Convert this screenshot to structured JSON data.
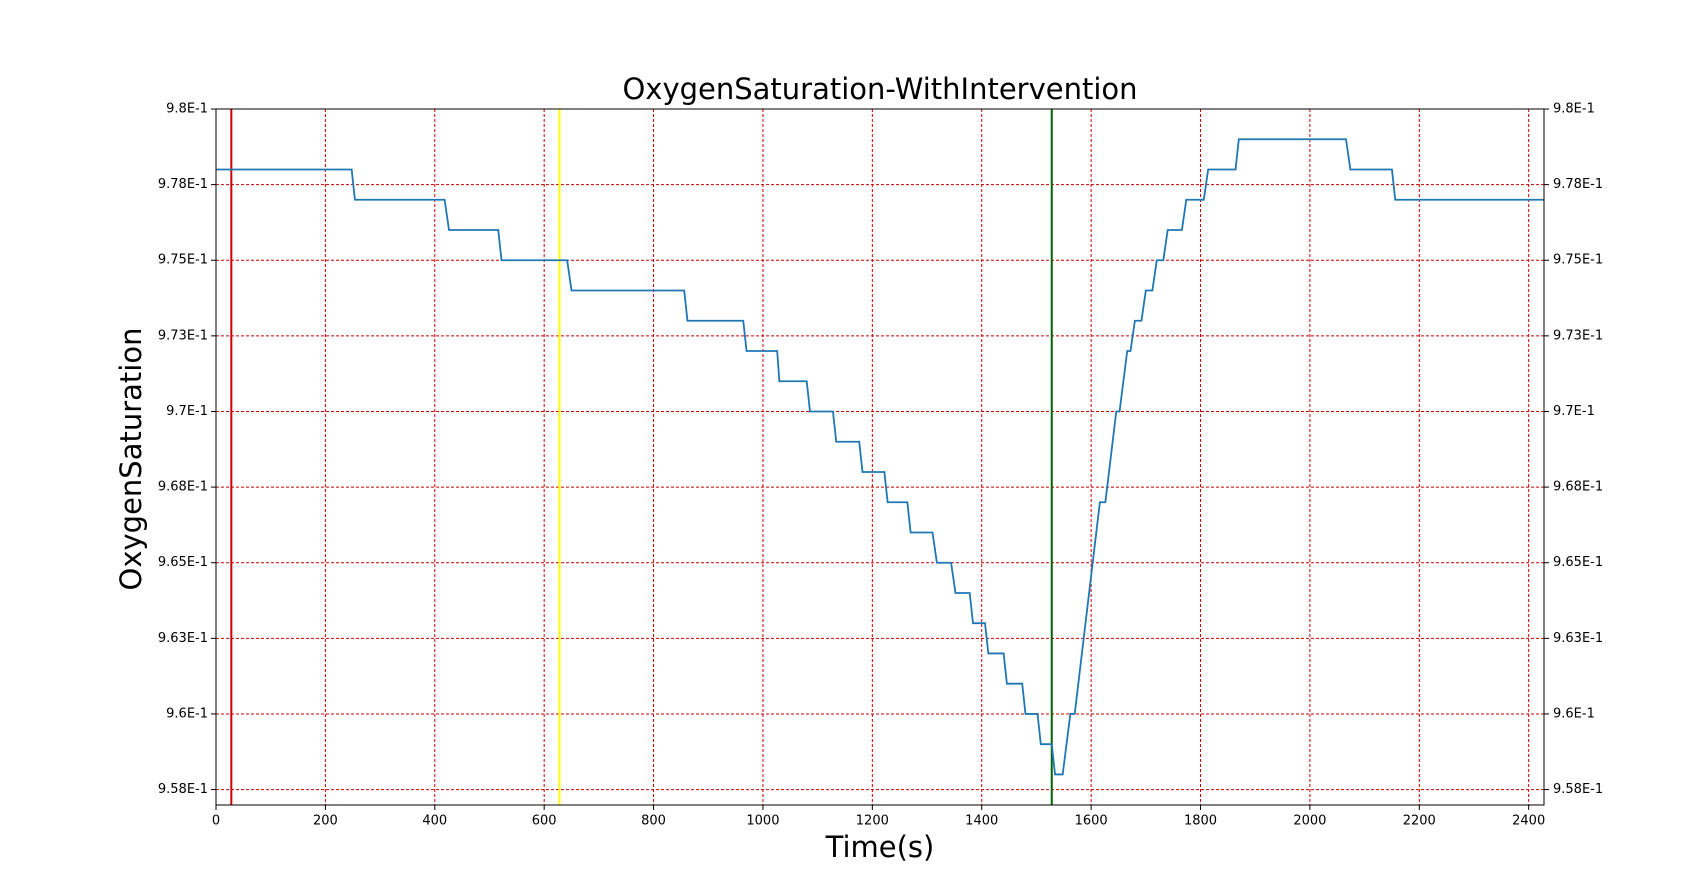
{
  "chart_data": {
    "type": "line",
    "title": "OxygenSaturation-WithIntervention",
    "x_label": "Time(s)",
    "y_label": "OxygenSaturation",
    "xlim": [
      0,
      2428
    ],
    "xticks": [
      0,
      200,
      400,
      600,
      800,
      1000,
      1200,
      1400,
      1600,
      1800,
      2000,
      2200,
      2400
    ],
    "ylim": [
      0.95699,
      0.98
    ],
    "yticks": [
      {
        "value": 0.9575,
        "label": "9.58E-1"
      },
      {
        "value": 0.96,
        "label": "9.6E-1"
      },
      {
        "value": 0.9625,
        "label": "9.63E-1"
      },
      {
        "value": 0.965,
        "label": "9.65E-1"
      },
      {
        "value": 0.9675,
        "label": "9.68E-1"
      },
      {
        "value": 0.97,
        "label": "9.7E-1"
      },
      {
        "value": 0.9725,
        "label": "9.73E-1"
      },
      {
        "value": 0.975,
        "label": "9.75E-1"
      },
      {
        "value": 0.9775,
        "label": "9.78E-1"
      },
      {
        "value": 0.98,
        "label": "9.8E-1"
      }
    ],
    "grid": true,
    "grid_color": "#cc0000",
    "vlines": [
      {
        "x": 28,
        "color": "#cc0000"
      },
      {
        "x": 628,
        "color": "#ffff00"
      },
      {
        "x": 1528,
        "color": "#006400"
      }
    ],
    "series": [
      {
        "color": "#1f77b4",
        "x": [
          0,
          248,
          254,
          418,
          426,
          516,
          522,
          642,
          650,
          856,
          862,
          964,
          970,
          1026,
          1030,
          1080,
          1086,
          1128,
          1134,
          1176,
          1182,
          1222,
          1228,
          1264,
          1270,
          1310,
          1318,
          1344,
          1352,
          1378,
          1384,
          1406,
          1412,
          1440,
          1446,
          1474,
          1480,
          1502,
          1508,
          1528,
          1534,
          1548,
          1562,
          1570,
          1616,
          1626,
          1646,
          1652,
          1666,
          1672,
          1680,
          1692,
          1700,
          1712,
          1720,
          1732,
          1740,
          1766,
          1774,
          1806,
          1814,
          1864,
          1870,
          2066,
          2074,
          2150,
          2156,
          2428
        ],
        "values": [
          0.978,
          0.978,
          0.977,
          0.977,
          0.976,
          0.976,
          0.975,
          0.975,
          0.974,
          0.974,
          0.973,
          0.973,
          0.972,
          0.972,
          0.971,
          0.971,
          0.97,
          0.97,
          0.969,
          0.969,
          0.968,
          0.968,
          0.967,
          0.967,
          0.966,
          0.966,
          0.965,
          0.965,
          0.964,
          0.964,
          0.963,
          0.963,
          0.962,
          0.962,
          0.961,
          0.961,
          0.96,
          0.96,
          0.959,
          0.959,
          0.958,
          0.958,
          0.96,
          0.96,
          0.967,
          0.967,
          0.97,
          0.97,
          0.972,
          0.972,
          0.973,
          0.973,
          0.974,
          0.974,
          0.975,
          0.975,
          0.976,
          0.976,
          0.977,
          0.977,
          0.978,
          0.978,
          0.979,
          0.979,
          0.978,
          0.978,
          0.977,
          0.977
        ]
      }
    ]
  }
}
